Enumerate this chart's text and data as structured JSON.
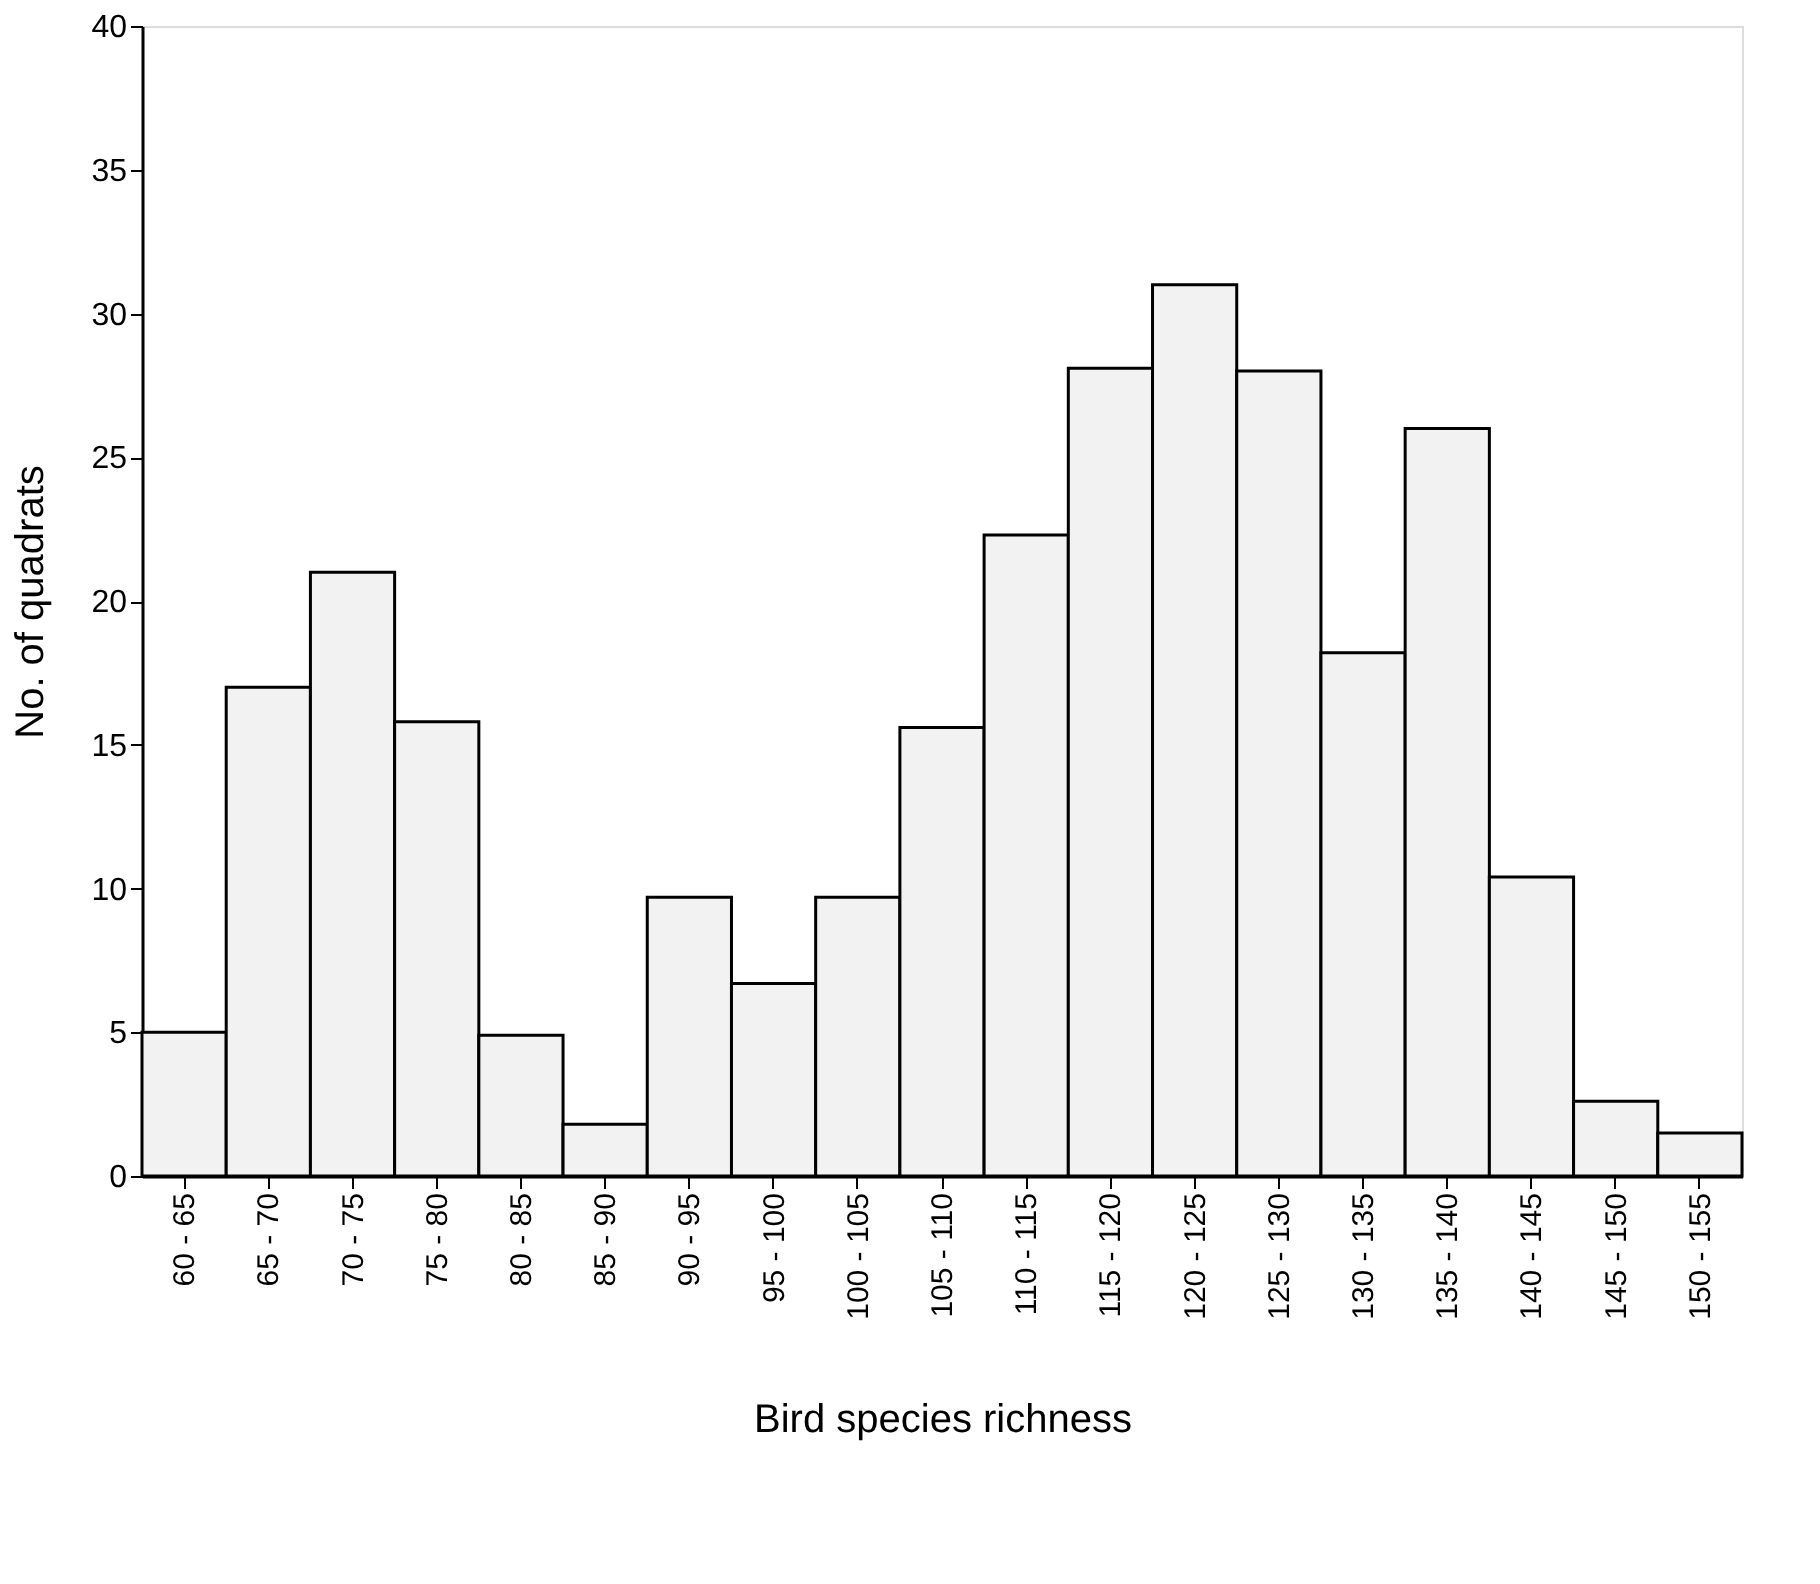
{
  "chart_data": {
    "type": "bar",
    "xlabel": "Bird species richness",
    "ylabel": "No. of quadrats",
    "categories": [
      "60 - 65",
      "65 - 70",
      "70 - 75",
      "75 - 80",
      "80 - 85",
      "85 - 90",
      "90 - 95",
      "95 - 100",
      "100 - 105",
      "105 - 110",
      "110 - 115",
      "115 - 120",
      "120 - 125",
      "125 - 130",
      "130 - 135",
      "135 - 140",
      "140 - 145",
      "145 - 150",
      "150 - 155"
    ],
    "values": [
      5,
      17,
      21,
      15.8,
      4.9,
      1.8,
      9.7,
      6.7,
      9.7,
      15.6,
      22.3,
      28.1,
      31,
      28,
      18.2,
      26,
      10.4,
      2.6,
      1.5
    ],
    "color": "#f2f2f2",
    "ylim": [
      0,
      40
    ],
    "yticks": [
      0,
      5,
      10,
      15,
      20,
      25,
      30,
      35,
      40
    ],
    "grid": false
  }
}
